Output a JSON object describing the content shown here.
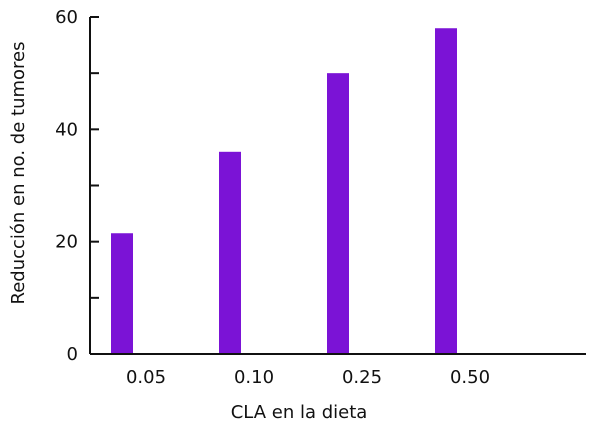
{
  "chart_data": {
    "type": "bar",
    "categories": [
      "0.05",
      "0.10",
      "0.25",
      "0.50"
    ],
    "values": [
      21.5,
      36,
      50,
      58
    ],
    "xlabel": "CLA en la dieta",
    "ylabel": "Reducción en no. de tumores",
    "ylim": [
      0,
      60
    ],
    "y_major_ticks": [
      {
        "value": 0,
        "label": "0"
      },
      {
        "value": 20,
        "label": "20"
      },
      {
        "value": 40,
        "label": "40"
      },
      {
        "value": 60,
        "label": "60"
      }
    ],
    "y_minor_ticks": [
      10,
      30,
      50
    ],
    "grid": false,
    "bar_color": "#7b13d6",
    "axis_color": "#111111"
  }
}
